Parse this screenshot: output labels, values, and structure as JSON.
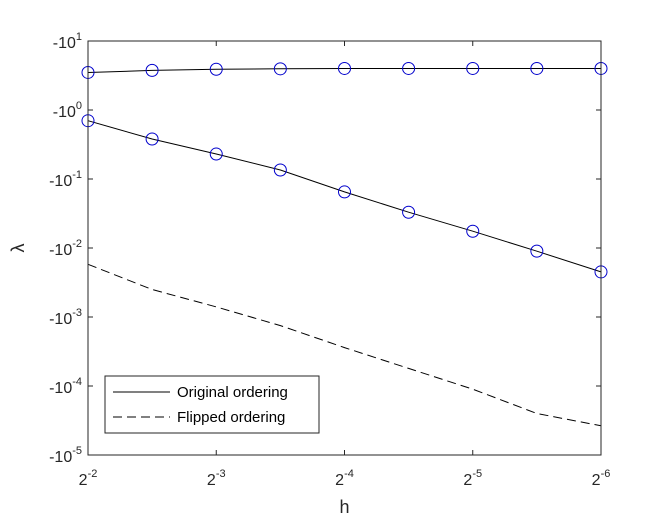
{
  "chart_data": {
    "type": "line",
    "title": "",
    "xlabel": "h",
    "ylabel": "λ",
    "x_scale": "log2",
    "y_scale": "log10 (negative values)",
    "x_ticks": [
      {
        "value": 0.25,
        "base": "2",
        "exp": "-2"
      },
      {
        "value": 0.125,
        "base": "2",
        "exp": "-3"
      },
      {
        "value": 0.0625,
        "base": "2",
        "exp": "-4"
      },
      {
        "value": 0.03125,
        "base": "2",
        "exp": "-5"
      },
      {
        "value": 0.015625,
        "base": "2",
        "exp": "-6"
      }
    ],
    "y_ticks": [
      {
        "value": -10,
        "base": "-10",
        "exp": "1"
      },
      {
        "value": -1,
        "base": "-10",
        "exp": "0"
      },
      {
        "value": -0.1,
        "base": "-10",
        "exp": "-1"
      },
      {
        "value": -0.01,
        "base": "-10",
        "exp": "-2"
      },
      {
        "value": -0.001,
        "base": "-10",
        "exp": "-3"
      },
      {
        "value": -0.0001,
        "base": "-10",
        "exp": "-4"
      },
      {
        "value": -1e-05,
        "base": "-10",
        "exp": "-5"
      }
    ],
    "xlim": [
      0.25,
      0.015625
    ],
    "ylim": [
      -10,
      -1e-05
    ],
    "grid": false,
    "legend_position": "bottom-left",
    "x": [
      0.25,
      0.1768,
      0.125,
      0.0884,
      0.0625,
      0.0442,
      0.03125,
      0.0221,
      0.015625
    ],
    "series": [
      {
        "name": "Original ordering",
        "style": "solid",
        "color": "#000000",
        "marker": "none",
        "values": [
          -3.5,
          -3.75,
          -3.9,
          -3.95,
          -4.0,
          -4.0,
          -4.0,
          -4.0,
          -4.0
        ]
      },
      {
        "name": "Original ordering",
        "style": "solid",
        "color": "#000000",
        "marker": "none",
        "values": [
          -0.7,
          -0.38,
          -0.23,
          -0.135,
          -0.065,
          -0.033,
          -0.0175,
          -0.009,
          -0.0045
        ]
      },
      {
        "name": "",
        "style": "none",
        "color": "#0000cc",
        "marker": "circle",
        "values": [
          -3.5,
          -3.75,
          -3.9,
          -3.95,
          -4.0,
          -4.0,
          -4.0,
          -4.0,
          -4.0
        ]
      },
      {
        "name": "",
        "style": "none",
        "color": "#0000cc",
        "marker": "circle",
        "values": [
          -0.7,
          -0.38,
          -0.23,
          -0.135,
          -0.065,
          -0.033,
          -0.0175,
          -0.009,
          -0.0045
        ]
      },
      {
        "name": "Flipped ordering",
        "style": "dashed",
        "color": "#000000",
        "marker": "none",
        "values": [
          -0.0058,
          -0.0025,
          -0.0014,
          -0.00075,
          -0.00036,
          -0.00018,
          -9e-05,
          -4e-05,
          -2.65e-05
        ]
      }
    ],
    "legend": [
      {
        "label": "Original ordering",
        "style": "solid"
      },
      {
        "label": "Flipped ordering",
        "style": "dashed"
      }
    ]
  }
}
